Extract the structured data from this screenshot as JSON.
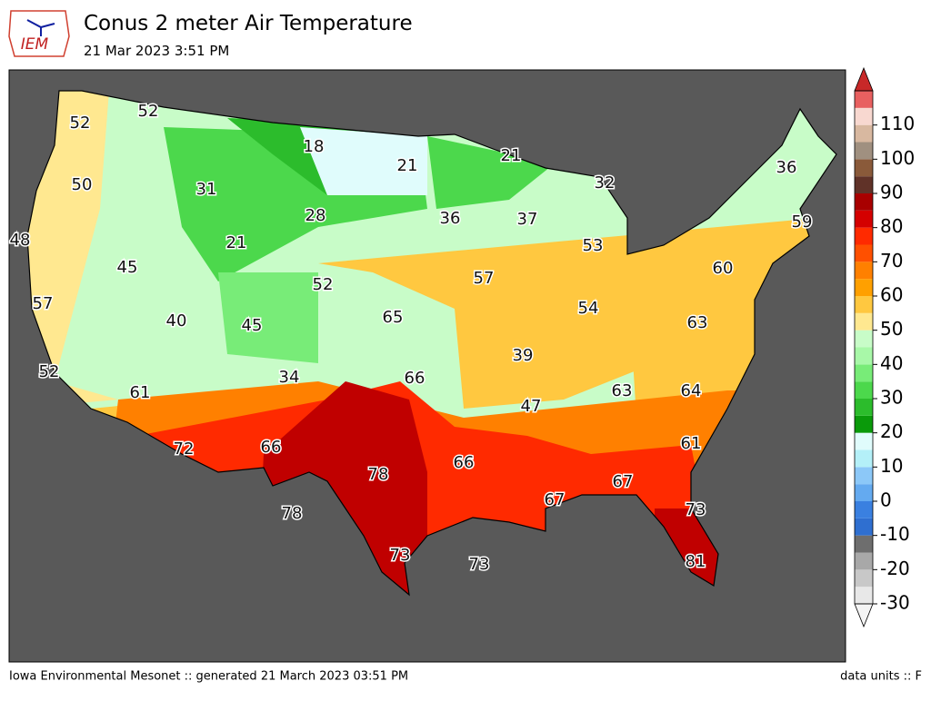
{
  "header": {
    "logo": "IEM",
    "title": "Conus 2 meter Air Temperature",
    "subtitle": "21 Mar 2023 3:51 PM"
  },
  "map": {
    "labels": [
      52,
      52,
      18,
      21,
      21,
      32,
      36,
      50,
      31,
      28,
      36,
      37,
      59,
      48,
      21,
      53,
      45,
      60,
      52,
      57,
      57,
      65,
      54,
      40,
      45,
      63,
      39,
      52,
      34,
      66,
      61,
      63,
      64,
      47,
      72,
      66,
      61,
      66,
      78,
      67,
      67,
      73,
      78,
      73,
      73,
      81
    ]
  },
  "colorbar": {
    "range": [
      -30,
      120
    ],
    "ticks": [
      -30,
      -20,
      -10,
      0,
      10,
      20,
      30,
      40,
      50,
      60,
      70,
      80,
      90,
      100,
      110
    ],
    "colors": [
      "#e8e8e8",
      "#c8c8c8",
      "#a8a8a8",
      "#6e6e6e",
      "#2f6fd0",
      "#3a80e0",
      "#64aaf0",
      "#8cc8f8",
      "#b4f0f8",
      "#e0fcfc",
      "#0a9a0a",
      "#2cbc2c",
      "#4cd84c",
      "#78ec78",
      "#a8f8a8",
      "#c8fcc8",
      "#ffe890",
      "#ffc840",
      "#ffa000",
      "#ff8000",
      "#ff5000",
      "#ff2a00",
      "#d40000",
      "#a80000",
      "#603228",
      "#8a5a3a",
      "#a09080",
      "#d8b8a0",
      "#f8d8d0",
      "#e86060"
    ],
    "extend_colors": [
      "#f4f4f4",
      "#c82828"
    ]
  },
  "footer": {
    "left": "Iowa Environmental Mesonet :: generated 21 March 2023 03:51 PM",
    "right": "data units :: F"
  }
}
